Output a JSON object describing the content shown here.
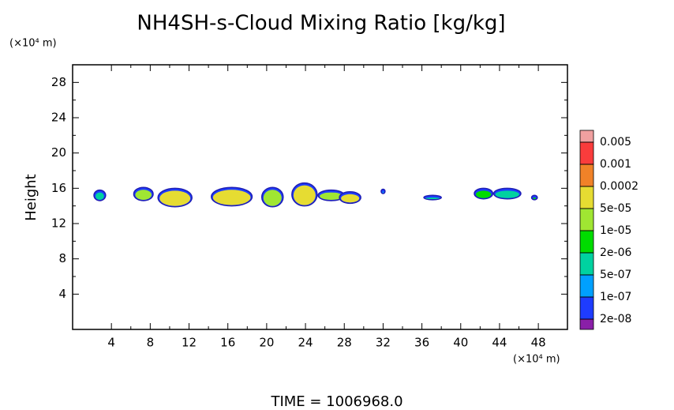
{
  "chart_data": {
    "type": "contour",
    "title": "NH4SH-s-Cloud Mixing Ratio [kg/kg]",
    "y_unit": "(×10⁴ m)",
    "x_unit": "(×10⁴ m)",
    "ylabel": "Height",
    "footer": "TIME = 1006968.0",
    "xlim": [
      0,
      51
    ],
    "ylim": [
      0,
      30
    ],
    "xticks": [
      4,
      8,
      12,
      16,
      20,
      24,
      28,
      32,
      36,
      40,
      44,
      48
    ],
    "yticks": [
      4,
      8,
      12,
      16,
      20,
      24,
      28
    ],
    "levels": [
      0.005,
      0.001,
      0.0002,
      {
        "value": 5e-05,
        "label": "5e-05"
      },
      {
        "value": 1e-05,
        "label": "1e-05"
      },
      {
        "value": 2e-06,
        "label": "2e-06"
      },
      {
        "value": 5e-07,
        "label": "5e-07"
      },
      {
        "value": 1e-07,
        "label": "1e-07"
      },
      {
        "value": 2e-08,
        "label": "2e-08"
      }
    ],
    "colors": [
      "#f0a0a0",
      "#fa3c3c",
      "#f08228",
      "#e6dc32",
      "#a0e632",
      "#00dc00",
      "#00d2a0",
      "#00a0ff",
      "#1e3cff",
      "#8a1fa8"
    ],
    "clouds": [
      {
        "x": [
          2.2,
          3.4
        ],
        "y": [
          14.6,
          15.8
        ],
        "value": 5e-07
      },
      {
        "x": [
          6.3,
          8.3
        ],
        "y": [
          14.6,
          16.1
        ],
        "value": 1e-05
      },
      {
        "x": [
          8.8,
          12.3
        ],
        "y": [
          13.9,
          16.0
        ],
        "value": 5e-05
      },
      {
        "x": [
          14.3,
          18.5
        ],
        "y": [
          14.0,
          16.1
        ],
        "value": 5e-05
      },
      {
        "x": [
          19.5,
          21.7
        ],
        "y": [
          13.9,
          16.1
        ],
        "value": 1e-05
      },
      {
        "x": [
          22.6,
          25.2
        ],
        "y": [
          14.0,
          16.6
        ],
        "value": 5e-05
      },
      {
        "x": [
          25.3,
          28.0
        ],
        "y": [
          14.6,
          15.8
        ],
        "value": 1e-05
      },
      {
        "x": [
          27.5,
          29.7
        ],
        "y": [
          14.3,
          15.6
        ],
        "value": 5e-05
      },
      {
        "x": [
          31.8,
          32.2
        ],
        "y": [
          15.4,
          15.9
        ],
        "value": 1e-07
      },
      {
        "x": [
          36.2,
          38.0
        ],
        "y": [
          14.7,
          15.2
        ],
        "value": 5e-07
      },
      {
        "x": [
          41.4,
          43.3
        ],
        "y": [
          14.8,
          16.0
        ],
        "value": 2e-06
      },
      {
        "x": [
          43.4,
          46.2
        ],
        "y": [
          14.8,
          16.0
        ],
        "value": 5e-07
      },
      {
        "x": [
          47.3,
          47.9
        ],
        "y": [
          14.7,
          15.2
        ],
        "value": 2e-06
      }
    ]
  }
}
